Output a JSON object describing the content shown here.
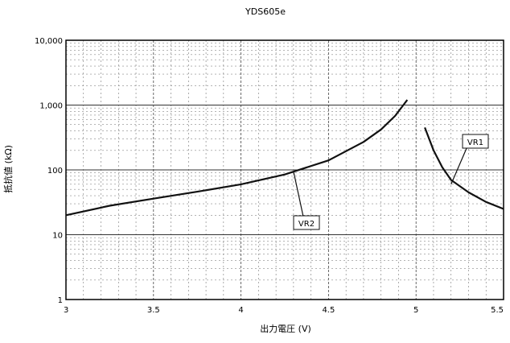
{
  "chart_data": {
    "type": "line",
    "title": "YDS605e",
    "xlabel": "出力電圧 (V)",
    "ylabel": "抵抗値 (kΩ)",
    "xlim": [
      3,
      5.5
    ],
    "ylim": [
      1,
      10000
    ],
    "y_scale": "log",
    "grid": true,
    "x_ticks": [
      "3",
      "3.5",
      "4",
      "4.5",
      "5",
      "5.5"
    ],
    "y_ticks": [
      "1",
      "10",
      "100",
      "1,000",
      "10,000"
    ],
    "series": [
      {
        "name": "VR2",
        "x": [
          3.0,
          3.25,
          3.5,
          3.75,
          4.0,
          4.25,
          4.5,
          4.7,
          4.8,
          4.88,
          4.95
        ],
        "y": [
          20,
          28,
          36,
          46,
          60,
          85,
          140,
          270,
          420,
          680,
          1200
        ]
      },
      {
        "name": "VR1",
        "x": [
          5.05,
          5.1,
          5.15,
          5.2,
          5.3,
          5.4,
          5.5
        ],
        "y": [
          450,
          200,
          110,
          70,
          45,
          32,
          25
        ]
      }
    ],
    "annotations": [
      {
        "text": "VR2",
        "series": "VR2",
        "x": 4.3,
        "y": 95
      },
      {
        "text": "VR1",
        "series": "VR1",
        "x": 5.2,
        "y": 60
      }
    ]
  }
}
